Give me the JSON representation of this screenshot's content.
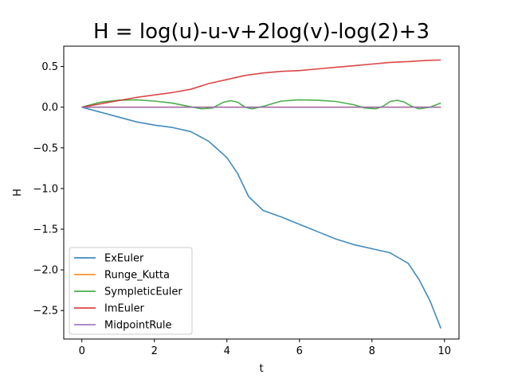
{
  "chart_data": {
    "type": "line",
    "title": "H = log(u)-u-v+2log(v)-log(2)+3",
    "xlabel": "t",
    "ylabel": "H",
    "xlim": [
      -0.5,
      10.4
    ],
    "ylim": [
      -2.85,
      0.75
    ],
    "xticks": [
      0,
      2,
      4,
      6,
      8,
      10
    ],
    "xtick_labels": [
      "0",
      "2",
      "4",
      "6",
      "8",
      "10"
    ],
    "yticks": [
      -2.5,
      -2.0,
      -1.5,
      -1.0,
      -0.5,
      0.0,
      0.5
    ],
    "ytick_labels": [
      "−2.5",
      "−2.0",
      "−1.5",
      "−1.0",
      "−0.5",
      "0.0",
      "0.5"
    ],
    "grid": false,
    "legend_position": "lower-left",
    "series": [
      {
        "name": "ExEuler",
        "color": "#1f77b4",
        "x": [
          0,
          0.5,
          1,
          1.5,
          2,
          2.5,
          3,
          3.5,
          4,
          4.3,
          4.6,
          5.0,
          5.5,
          6,
          6.5,
          7,
          7.5,
          8,
          8.5,
          9,
          9.3,
          9.6,
          9.9
        ],
        "y": [
          0,
          -0.06,
          -0.12,
          -0.18,
          -0.22,
          -0.25,
          -0.3,
          -0.42,
          -0.62,
          -0.82,
          -1.1,
          -1.27,
          -1.35,
          -1.44,
          -1.53,
          -1.62,
          -1.69,
          -1.74,
          -1.79,
          -1.92,
          -2.12,
          -2.38,
          -2.72
        ]
      },
      {
        "name": "Runge_Kutta",
        "color": "#ff7f0e",
        "x": [
          0,
          9.9
        ],
        "y": [
          0,
          0
        ]
      },
      {
        "name": "SympleticEuler",
        "color": "#2ca02c",
        "x": [
          0,
          0.5,
          1,
          1.5,
          2,
          2.5,
          3,
          3.3,
          3.6,
          3.9,
          4.1,
          4.3,
          4.5,
          4.7,
          5.0,
          5.5,
          6,
          6.5,
          7,
          7.5,
          7.8,
          8.1,
          8.3,
          8.5,
          8.7,
          8.9,
          9.1,
          9.3,
          9.6,
          9.9
        ],
        "y": [
          0,
          0.06,
          0.085,
          0.09,
          0.075,
          0.05,
          0.005,
          -0.02,
          -0.01,
          0.06,
          0.08,
          0.06,
          0.0,
          -0.02,
          0.01,
          0.075,
          0.09,
          0.085,
          0.07,
          0.03,
          -0.01,
          -0.02,
          0.01,
          0.07,
          0.085,
          0.06,
          0.01,
          -0.02,
          0.0,
          0.05
        ]
      },
      {
        "name": "ImEuler",
        "color": "#d62728",
        "x": [
          0,
          0.5,
          1,
          1.5,
          2,
          2.5,
          3,
          3.5,
          4,
          4.5,
          5,
          5.5,
          6,
          6.5,
          7,
          7.5,
          8,
          8.5,
          9,
          9.5,
          9.9
        ],
        "y": [
          0,
          0.04,
          0.08,
          0.12,
          0.15,
          0.18,
          0.22,
          0.29,
          0.34,
          0.39,
          0.42,
          0.44,
          0.45,
          0.47,
          0.49,
          0.51,
          0.53,
          0.55,
          0.56,
          0.575,
          0.58
        ]
      },
      {
        "name": "MidpointRule",
        "color": "#9467bd",
        "x": [
          0,
          9.9
        ],
        "y": [
          0,
          0
        ]
      }
    ]
  }
}
